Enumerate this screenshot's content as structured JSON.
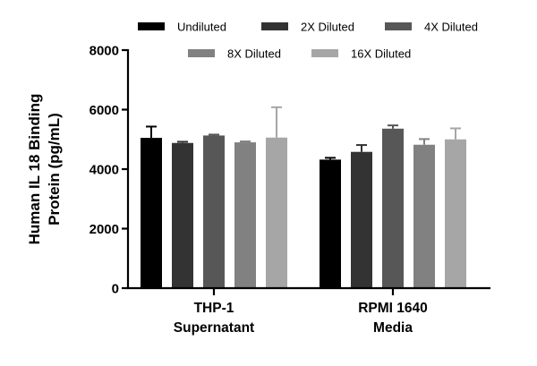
{
  "chart_data": {
    "type": "bar",
    "title": "",
    "ylabel_lines": [
      "Human IL 18 Binding",
      "Protein (pg/mL)"
    ],
    "xlabel": "",
    "ylim": [
      0,
      8000
    ],
    "yticks": [
      "0",
      "2000",
      "4000",
      "6000",
      "8000"
    ],
    "categories": [
      {
        "lines": [
          "THP-1",
          "Supernatant"
        ]
      },
      {
        "lines": [
          "RPMI 1640",
          "Media"
        ]
      }
    ],
    "legend_position": "top",
    "series": [
      {
        "name": "Undiluted",
        "color": "#000000",
        "values": [
          5050,
          4320
        ],
        "errors": [
          380,
          60
        ]
      },
      {
        "name": "2X Diluted",
        "color": "#333333",
        "values": [
          4880,
          4580
        ],
        "errors": [
          40,
          230
        ]
      },
      {
        "name": "4X Diluted",
        "color": "#575757",
        "values": [
          5130,
          5360
        ],
        "errors": [
          30,
          110
        ]
      },
      {
        "name": "8X Diluted",
        "color": "#818181",
        "values": [
          4900,
          4820
        ],
        "errors": [
          30,
          190
        ]
      },
      {
        "name": "16X Diluted",
        "color": "#a6a6a6",
        "values": [
          5060,
          5000
        ],
        "errors": [
          1020,
          370
        ]
      }
    ]
  }
}
